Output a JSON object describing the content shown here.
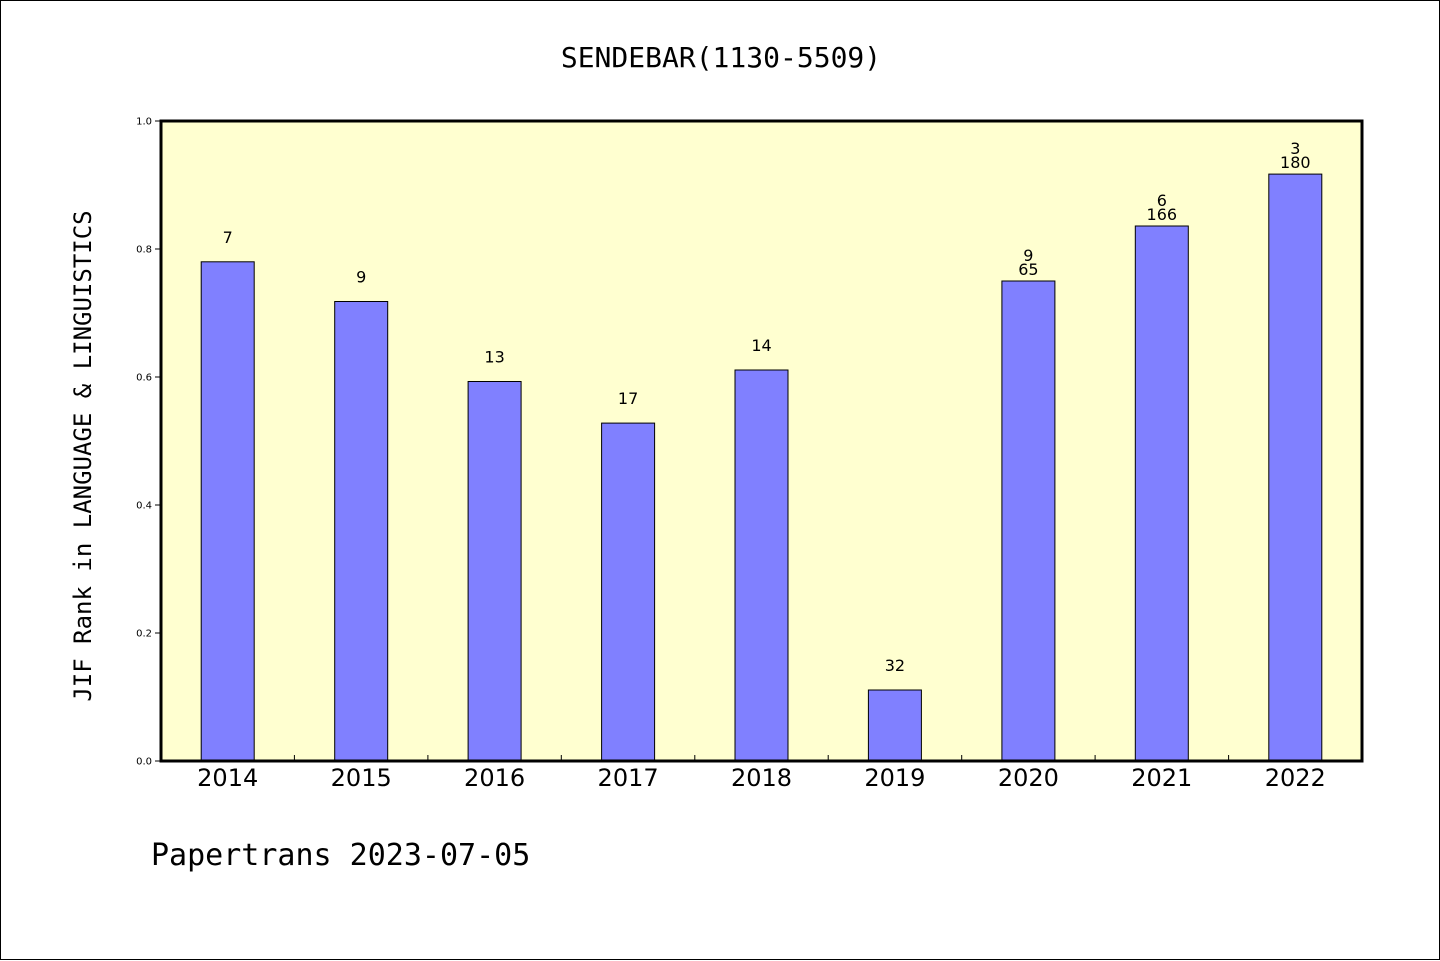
{
  "chart_data": {
    "type": "bar",
    "title": "SENDEBAR(1130-5509)",
    "xlabel": "",
    "ylabel": "JIF Rank in LANGUAGE & LINGUISTICS",
    "ylim": [
      0,
      1.0
    ],
    "yticks": [
      "0.0",
      "0.2",
      "0.4",
      "0.6",
      "0.8",
      "1.0"
    ],
    "categories": [
      "2014",
      "2015",
      "2016",
      "2017",
      "2018",
      "2019",
      "2020",
      "2021",
      "2022"
    ],
    "values": [
      0.78,
      0.718,
      0.593,
      0.528,
      0.611,
      0.111,
      0.75,
      0.836,
      0.917
    ],
    "bar_labels": [
      [
        "7"
      ],
      [
        "9"
      ],
      [
        "13"
      ],
      [
        "17"
      ],
      [
        "14"
      ],
      [
        "32"
      ],
      [
        "9",
        "65"
      ],
      [
        "6",
        "166"
      ],
      [
        "3",
        "180"
      ]
    ],
    "bar_color": "#8080ff",
    "plot_background": "#ffffd0",
    "grid": false
  },
  "footer": {
    "text": "Papertrans 2023-07-05"
  }
}
